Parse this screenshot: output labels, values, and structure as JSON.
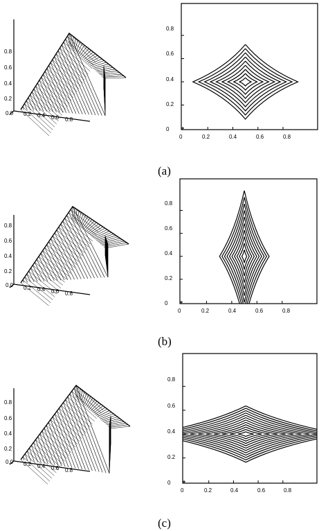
{
  "figure": {
    "panels": [
      {
        "caption": "(a)",
        "surface_ticks": [
          "0.8",
          "0.6",
          "0.4",
          "0.2"
        ],
        "surface_x_ticks": [
          "0.2",
          "0.4",
          "0.6",
          "0.8"
        ],
        "surface_origin": "0.0",
        "contour_y_ticks": [
          "0",
          "0.2",
          "0.4",
          "0.6",
          "0.8"
        ],
        "contour_x_ticks": [
          "0",
          "0.2",
          "0.4",
          "0.6",
          "0.8"
        ],
        "peak": [
          0.5,
          0.4
        ],
        "aspect": [
          1.3,
          1.0
        ],
        "levels": 9
      },
      {
        "caption": "(b)",
        "surface_ticks": [
          "0.8",
          "0.6",
          "0.4",
          "0.2"
        ],
        "surface_x_ticks": [
          "0.2",
          "0.4",
          "0.6",
          "0.8"
        ],
        "surface_origin": "0.0",
        "contour_y_ticks": [
          "0",
          "0.2",
          "0.4",
          "0.6",
          "0.8"
        ],
        "contour_x_ticks": [
          "0",
          "0.2",
          "0.4",
          "0.6",
          "0.8"
        ],
        "peak": [
          0.5,
          0.4
        ],
        "aspect": [
          0.55,
          1.6
        ],
        "levels": 10
      },
      {
        "caption": "(c)",
        "surface_ticks": [
          "0.8",
          "0.6",
          "0.4",
          "0.2"
        ],
        "surface_x_ticks": [
          "0.2",
          "0.4",
          "0.6",
          "0.8"
        ],
        "surface_origin": "0.0",
        "contour_y_ticks": [
          "0",
          "0.2",
          "0.4",
          "0.6",
          "0.8"
        ],
        "contour_x_ticks": [
          "0",
          "0.2",
          "0.4",
          "0.6",
          "0.8"
        ],
        "peak": [
          0.5,
          0.4
        ],
        "aspect": [
          1.8,
          0.55
        ],
        "levels": 12
      }
    ]
  }
}
